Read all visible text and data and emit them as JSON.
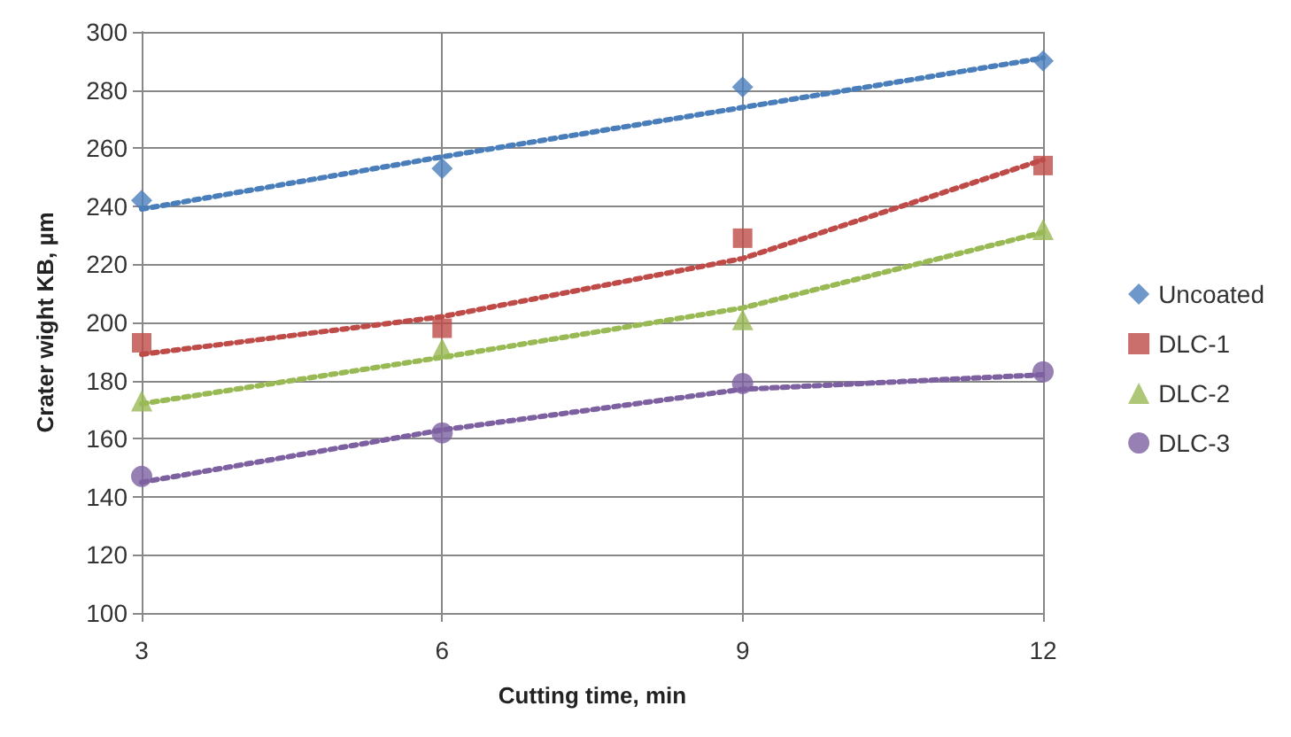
{
  "chart_data": {
    "type": "scatter",
    "xlabel": "Cutting time, min",
    "ylabel": "Crater wight KB, µm",
    "x": [
      3,
      6,
      9,
      12
    ],
    "xlim": [
      3,
      12
    ],
    "xticks": [
      3,
      6,
      9,
      12
    ],
    "ylim": [
      100,
      300
    ],
    "yticks": [
      100,
      120,
      140,
      160,
      180,
      200,
      220,
      240,
      260,
      280,
      300
    ],
    "grid": true,
    "legend": "right",
    "series": [
      {
        "name": "Uncoated",
        "color": "#4a7ebb",
        "marker": "diamond",
        "values": [
          242,
          253,
          281,
          290
        ]
      },
      {
        "name": "DLC-1",
        "color": "#be4b48",
        "marker": "square",
        "values": [
          193,
          198,
          229,
          254
        ]
      },
      {
        "name": "DLC-2",
        "color": "#98b954",
        "marker": "triangle",
        "values": [
          173,
          191,
          201,
          232
        ]
      },
      {
        "name": "DLC-3",
        "color": "#7d60a0",
        "marker": "circle",
        "values": [
          147,
          162,
          179,
          183
        ]
      },
      {
        "type": "line",
        "color": "#4a7ebb",
        "marker": "none",
        "line_style": "dotted",
        "values": [
          239,
          257,
          274,
          291
        ]
      },
      {
        "type": "line",
        "color": "#be4b48",
        "marker": "none",
        "line_style": "dotted",
        "values": [
          189,
          202,
          222,
          256
        ]
      },
      {
        "type": "line",
        "color": "#98b954",
        "marker": "none",
        "line_style": "dotted",
        "values": [
          172,
          188,
          205,
          231
        ]
      },
      {
        "type": "line",
        "color": "#7d60a0",
        "marker": "none",
        "line_style": "dotted",
        "values": [
          145,
          163,
          177,
          182
        ]
      }
    ]
  }
}
